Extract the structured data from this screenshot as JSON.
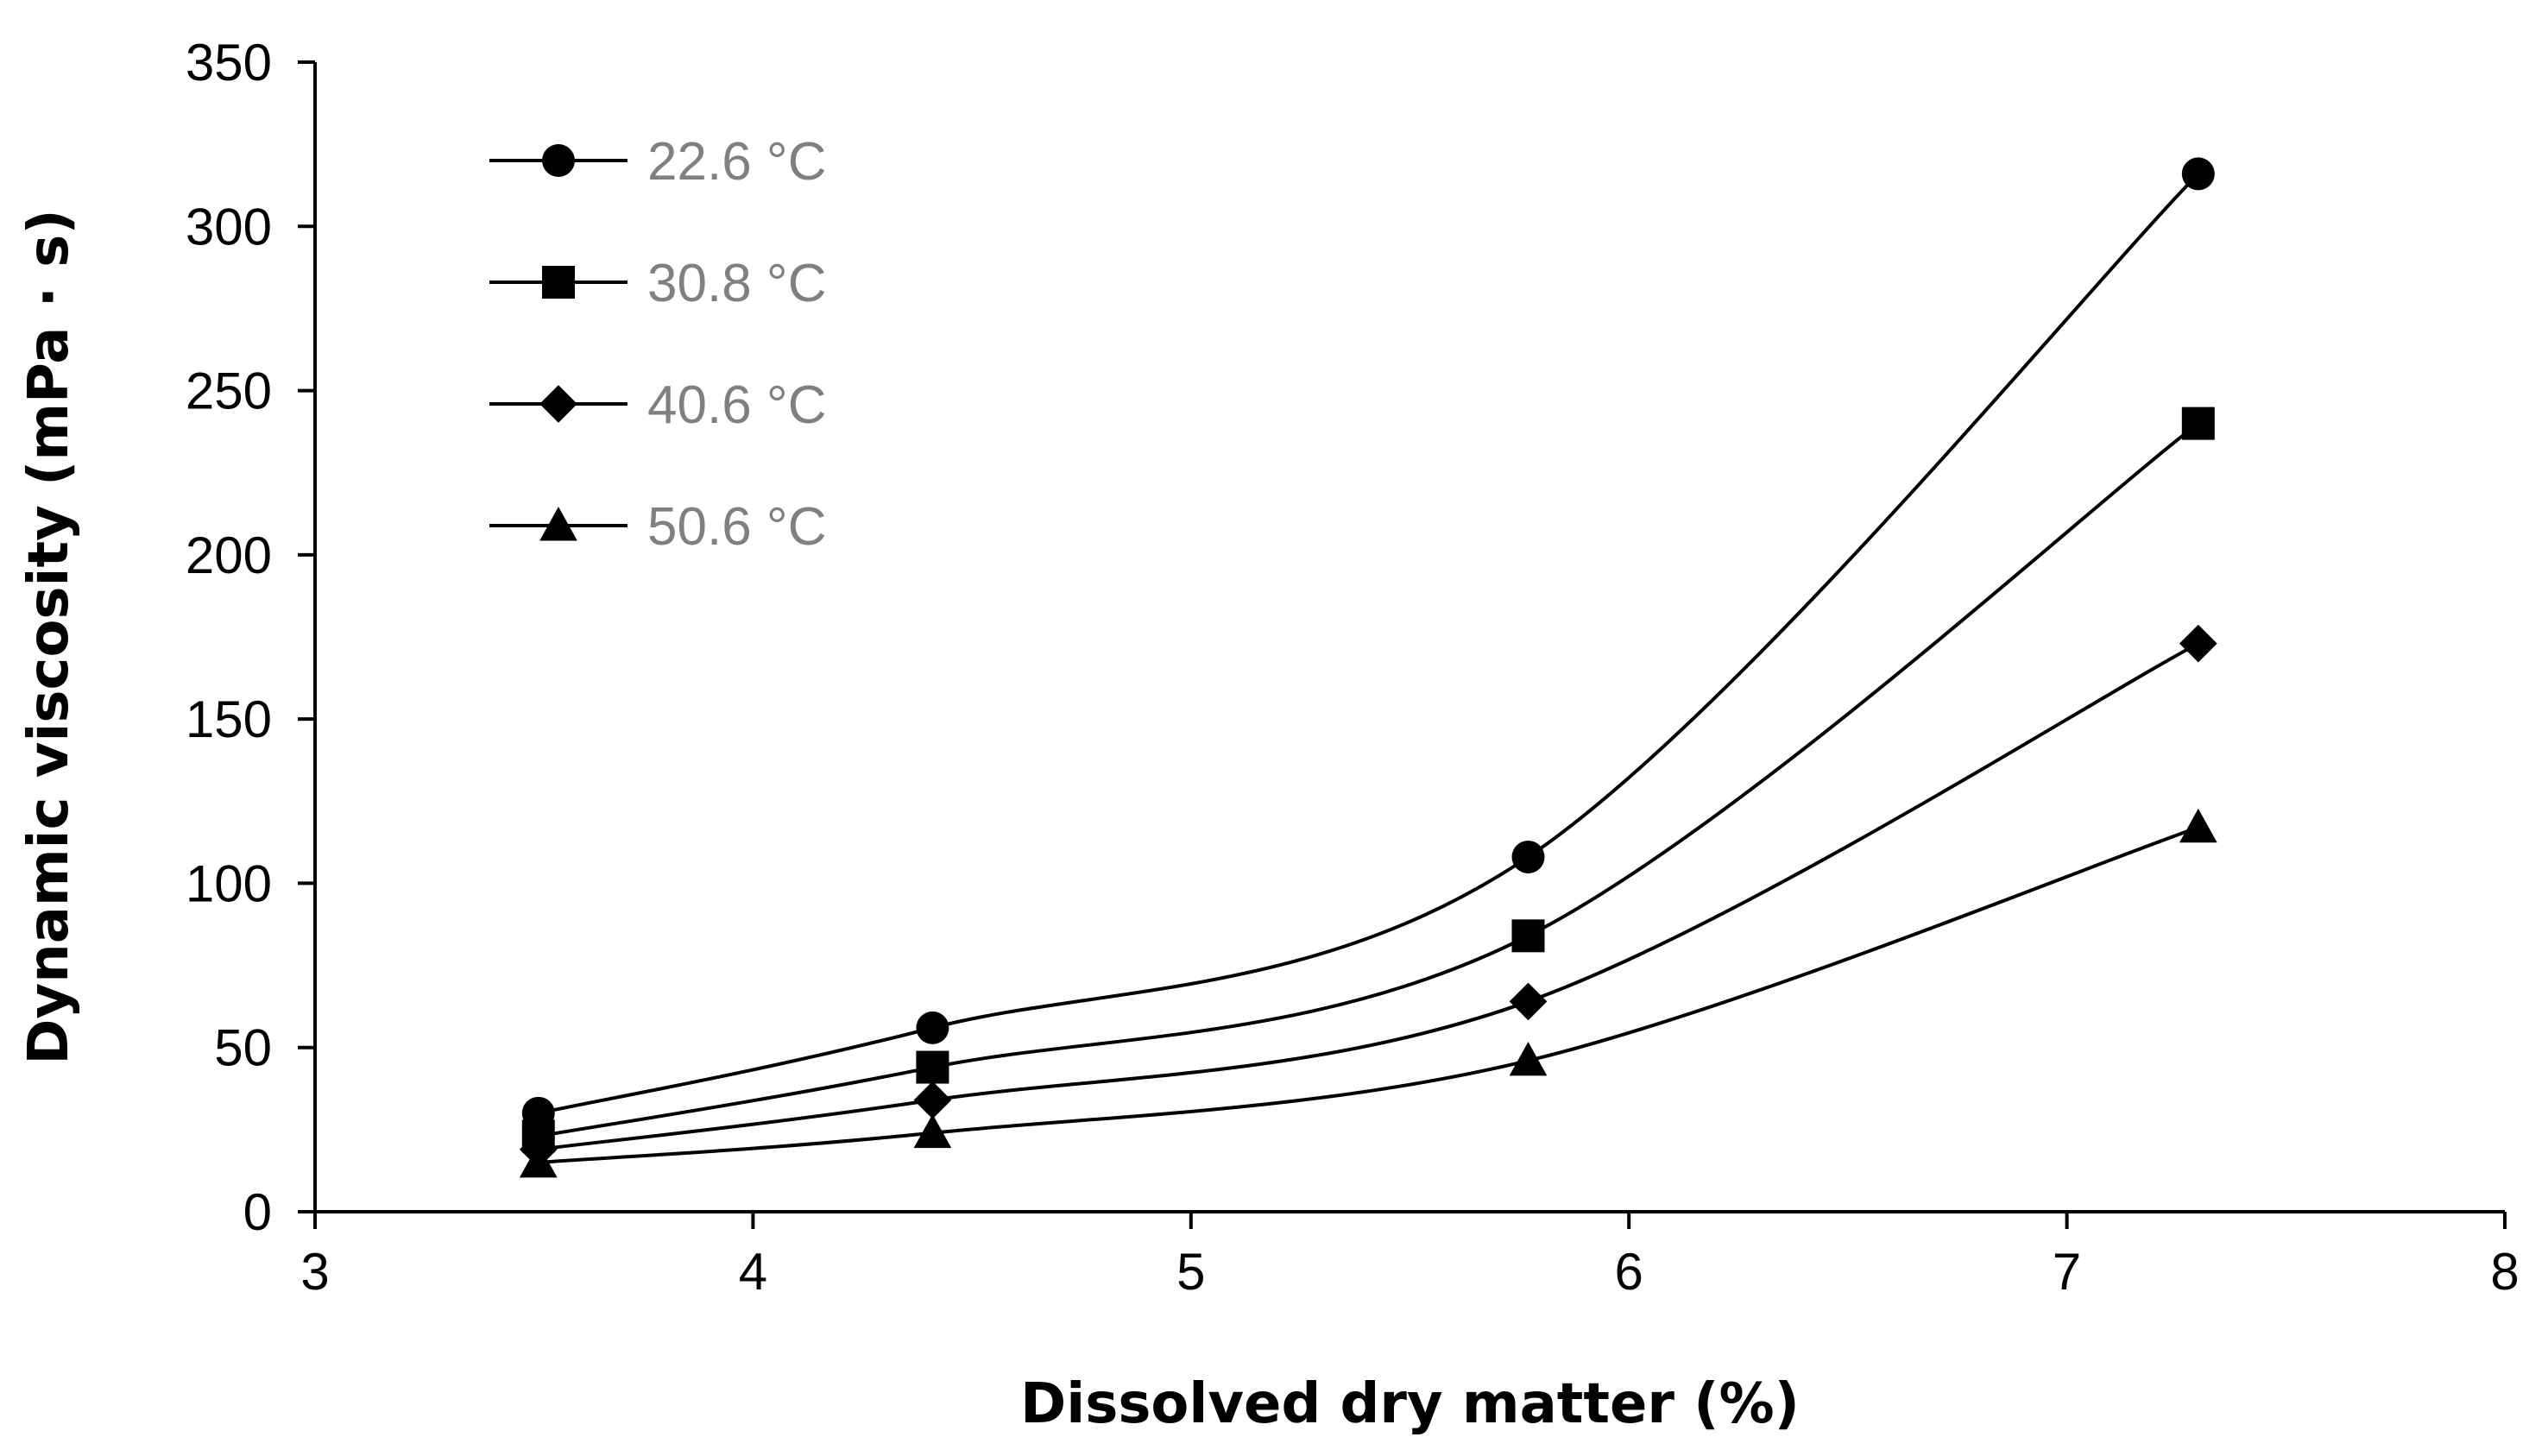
{
  "chart_data": {
    "type": "line",
    "title": "",
    "xlabel": "Dissolved dry matter (%)",
    "ylabel": "Dynamic viscosity (mPa · s)",
    "xlim": [
      3,
      8
    ],
    "ylim": [
      0,
      350
    ],
    "xticks": [
      3,
      4,
      5,
      6,
      7,
      8
    ],
    "yticks": [
      0,
      50,
      100,
      150,
      200,
      250,
      300,
      350
    ],
    "grid": false,
    "legend_position": "top-left",
    "smooth": true,
    "x": [
      3.51,
      4.41,
      5.77,
      7.3
    ],
    "series": [
      {
        "name": "22.6 °C",
        "marker": "circle",
        "values": [
          30,
          56,
          108,
          316
        ]
      },
      {
        "name": "30.8 °C",
        "marker": "square",
        "values": [
          23,
          44,
          84,
          240
        ]
      },
      {
        "name": "40.6 °C",
        "marker": "diamond",
        "values": [
          19,
          34,
          64,
          173
        ]
      },
      {
        "name": "50.6 °C",
        "marker": "triangle",
        "values": [
          15,
          24,
          46,
          117
        ]
      }
    ],
    "colors": {
      "line": "#000000",
      "marker": "#000000",
      "legend_text": "#808080",
      "axis": "#000000"
    }
  }
}
